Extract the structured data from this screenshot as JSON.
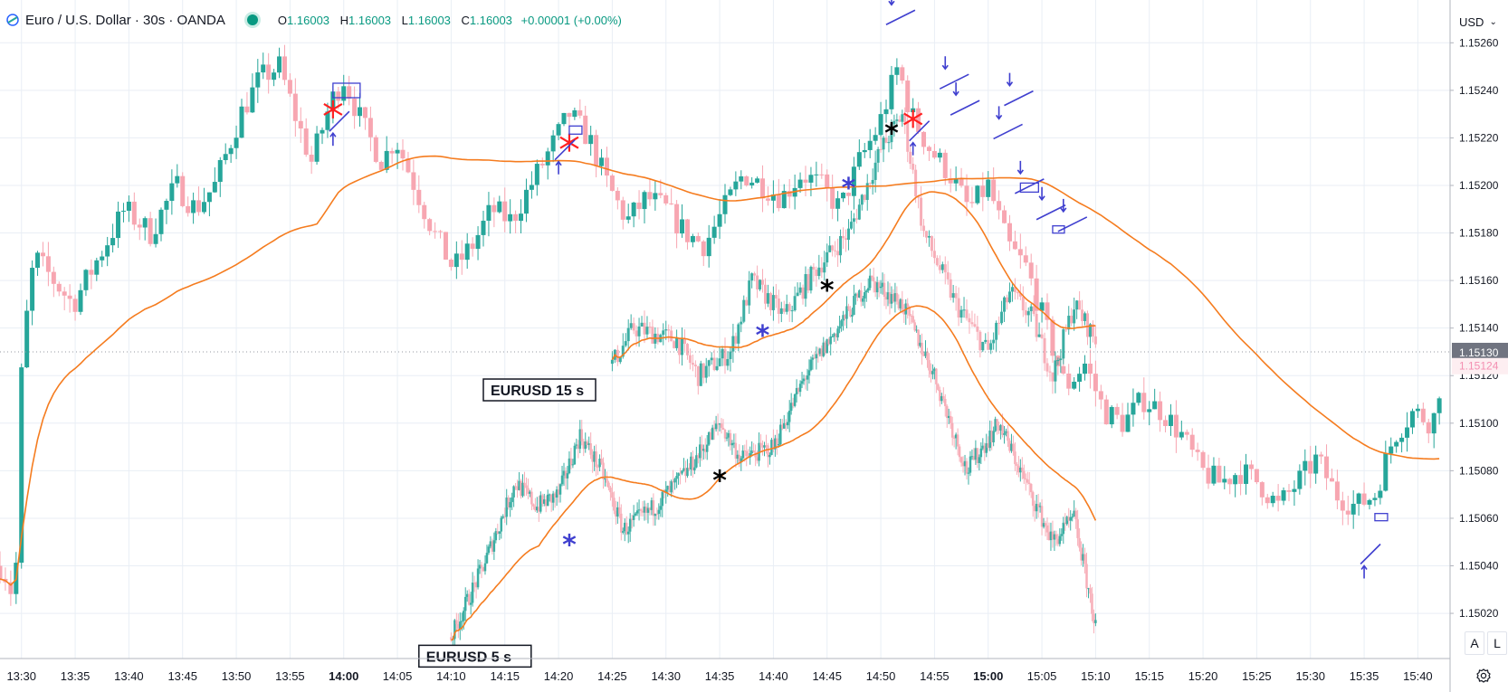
{
  "header": {
    "symbol_title": "Euro / U.S. Dollar · 30s · OANDA",
    "ohlc": {
      "o_label": "O",
      "o": "1.16003",
      "h_label": "H",
      "h": "1.16003",
      "l_label": "L",
      "l": "1.16003",
      "c_label": "C",
      "c": "1.16003",
      "change": "+0.00001 (+0.00%)"
    }
  },
  "price_scale": {
    "currency": "USD",
    "last_price": "1.15130",
    "secondary_price": "1.15124",
    "ticks": [
      "1.15260",
      "1.15240",
      "1.15220",
      "1.15200",
      "1.15180",
      "1.15160",
      "1.15140",
      "1.15120",
      "1.15100",
      "1.15080",
      "1.15060",
      "1.15040",
      "1.15020"
    ]
  },
  "time_scale": {
    "ticks": [
      "13:30",
      "13:35",
      "13:40",
      "13:45",
      "13:50",
      "13:55",
      "14:00",
      "14:05",
      "14:10",
      "14:15",
      "14:20",
      "14:25",
      "14:30",
      "14:35",
      "14:40",
      "14:45",
      "14:50",
      "14:55",
      "15:00",
      "15:05",
      "15:10",
      "15:15",
      "15:20",
      "15:25",
      "15:30",
      "15:35",
      "15:40"
    ],
    "bold_ticks": [
      "14:00",
      "15:00"
    ]
  },
  "buttons": {
    "auto": "A",
    "log": "L"
  },
  "colors": {
    "up": "#26a69a",
    "down": "#f7a6b1",
    "ma": "#f57c1f",
    "annot": "#3f3fcf",
    "cross": "#ff2020",
    "grid": "#e9eef5"
  },
  "annotations": {
    "label_15s": "EURUSD  15 s",
    "label_5s": "EURUSD  5 s"
  },
  "chart_data": {
    "type": "candlestick",
    "title": "Euro / U.S. Dollar · 30s · OANDA",
    "x_range": [
      "13:28",
      "15:43"
    ],
    "ylim": [
      1.15001,
      1.15278
    ],
    "grid": true,
    "series": [
      {
        "name": "EURUSD 30s",
        "close_path": [
          [
            13.47,
            1.1504
          ],
          [
            13.49,
            1.15025
          ],
          [
            13.5,
            1.1512
          ],
          [
            13.51,
            1.1515
          ],
          [
            13.52,
            1.1517
          ],
          [
            13.55,
            1.1516
          ],
          [
            13.58,
            1.1515
          ],
          [
            13.62,
            1.1517
          ],
          [
            13.66,
            1.1519
          ],
          [
            13.7,
            1.1518
          ],
          [
            13.74,
            1.152
          ],
          [
            13.77,
            1.1519
          ],
          [
            13.8,
            1.152
          ],
          [
            13.84,
            1.1523
          ],
          [
            13.87,
            1.15245
          ],
          [
            13.9,
            1.1525
          ],
          [
            13.93,
            1.15225
          ],
          [
            13.95,
            1.1521
          ],
          [
            13.98,
            1.15235
          ],
          [
            14.0,
            1.15245
          ],
          [
            14.03,
            1.15225
          ],
          [
            14.06,
            1.1521
          ],
          [
            14.08,
            1.1522
          ],
          [
            14.11,
            1.152
          ],
          [
            14.14,
            1.1518
          ],
          [
            14.17,
            1.15165
          ],
          [
            14.2,
            1.15175
          ],
          [
            14.23,
            1.1519
          ],
          [
            14.26,
            1.15185
          ],
          [
            14.29,
            1.152
          ],
          [
            14.32,
            1.15215
          ],
          [
            14.35,
            1.1523
          ],
          [
            14.38,
            1.1522
          ],
          [
            14.41,
            1.152
          ],
          [
            14.44,
            1.15185
          ],
          [
            14.47,
            1.15195
          ],
          [
            14.5,
            1.1519
          ],
          [
            14.53,
            1.1518
          ],
          [
            14.56,
            1.15175
          ],
          [
            14.59,
            1.1519
          ],
          [
            14.62,
            1.15205
          ],
          [
            14.65,
            1.152
          ],
          [
            14.68,
            1.15195
          ],
          [
            14.71,
            1.15205
          ],
          [
            14.74,
            1.152
          ],
          [
            14.77,
            1.1519
          ],
          [
            14.8,
            1.1521
          ],
          [
            14.83,
            1.15225
          ],
          [
            14.86,
            1.1525
          ],
          [
            14.88,
            1.1523
          ],
          [
            14.91,
            1.15215
          ],
          [
            14.94,
            1.15205
          ],
          [
            14.97,
            1.1519
          ],
          [
            15.0,
            1.152
          ],
          [
            15.03,
            1.15175
          ],
          [
            15.06,
            1.15165
          ],
          [
            15.09,
            1.1514
          ],
          [
            15.12,
            1.15115
          ],
          [
            15.15,
            1.15125
          ],
          [
            15.18,
            1.15105
          ],
          [
            15.21,
            1.151
          ],
          [
            15.24,
            1.1511
          ],
          [
            15.27,
            1.15105
          ],
          [
            15.3,
            1.15095
          ],
          [
            15.33,
            1.1508
          ],
          [
            15.36,
            1.15075
          ],
          [
            15.39,
            1.1508
          ],
          [
            15.42,
            1.15075
          ],
          [
            15.45,
            1.15065
          ],
          [
            15.48,
            1.15075
          ],
          [
            15.51,
            1.15085
          ],
          [
            15.54,
            1.1507
          ],
          [
            15.57,
            1.15065
          ],
          [
            15.6,
            1.1507
          ],
          [
            15.63,
            1.15095
          ],
          [
            15.66,
            1.15105
          ],
          [
            15.69,
            1.151
          ],
          [
            15.71,
            1.1513
          ]
        ]
      },
      {
        "name": "EURUSD 15 s"
      },
      {
        "name": "EURUSD 5 s"
      }
    ]
  }
}
